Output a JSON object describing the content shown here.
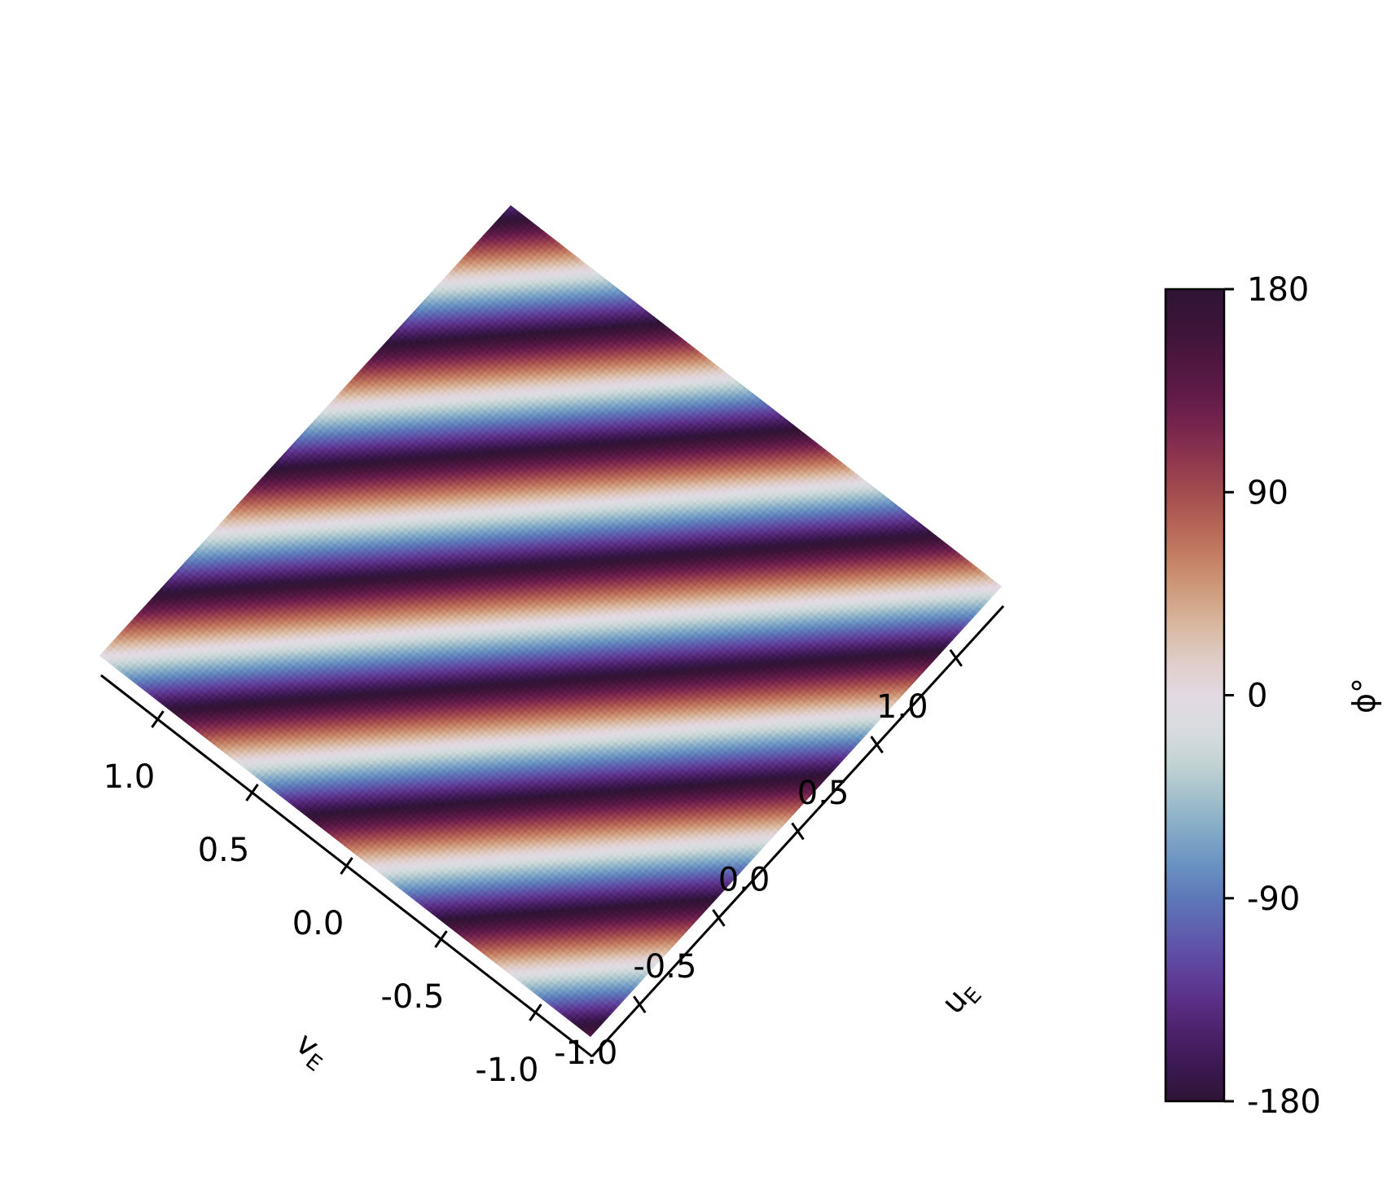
{
  "chart_data": {
    "type": "heatmap",
    "title": "",
    "description_kind": "phase map on rotated (u_E, v_E) plane, projected 3D view",
    "colormap": "twilight_shifted",
    "value_range": [
      -180,
      180
    ],
    "u_axis": {
      "label_main": "u",
      "label_sub": "E",
      "range": [
        -1.3,
        1.3
      ],
      "ticks": [
        -1.0,
        -0.5,
        0.0,
        0.5,
        1.0
      ],
      "tick_labels": [
        "-1.0",
        "-0.5",
        "0.0",
        "0.5",
        "1.0"
      ]
    },
    "v_axis": {
      "label_main": "v",
      "label_sub": "E",
      "range": [
        -1.3,
        1.3
      ],
      "ticks": [
        -1.0,
        -0.5,
        0.0,
        0.5,
        1.0
      ],
      "tick_labels": [
        "-1.0",
        "-0.5",
        "0.0",
        "0.5",
        "1.0"
      ]
    },
    "phase_model": {
      "formula": "phi = wrap(k_u*u + k_v*v)",
      "k_u_deg_per_unit": 500,
      "k_v_deg_per_unit": 500,
      "offset_deg": 0
    },
    "colorbar": {
      "label": "ϕ°",
      "ticks": [
        180,
        90,
        0,
        -90,
        -180
      ],
      "tick_labels": [
        "180",
        "90",
        "0",
        "-90",
        "-180"
      ]
    }
  }
}
